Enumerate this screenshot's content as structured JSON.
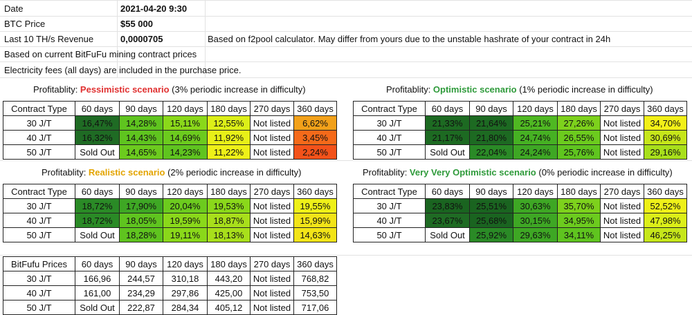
{
  "info": {
    "date_label": "Date",
    "date_value": "2021-04-20 9:30",
    "btc_label": "BTC Price",
    "btc_value": "$55 000",
    "revenue_label": "Last 10 TH/s Revenue",
    "revenue_value": "0,0000705",
    "revenue_note": "Based on f2pool calculator. May differ from yours due to the unstable hashrate of your contract in 24h",
    "line_contract_prices": "Based on current BitFuFu mining contract prices",
    "line_electricity": "Electricity fees (all days) are included in the purchase price."
  },
  "captions": {
    "prefix": "Profitablity: ",
    "pessimistic_name": "Pessimistic scenario",
    "pessimistic_rest": " (3% periodic increase in difficulty)",
    "optimistic_name": "Optimistic scenario",
    "optimistic_rest": " (1% periodic increase in difficulty)",
    "realistic_name": "Realistic scenario",
    "realistic_rest": " (2% periodic increase in difficulty)",
    "vvopt_name": "Very Very Optimistic scenario",
    "vvopt_rest": " (0% periodic increase in difficulty)"
  },
  "header_cols": [
    "60 days",
    "90 days",
    "120 days",
    "180 days",
    "270 days",
    "360 days"
  ],
  "contract_type_label": "Contract Type",
  "prices_label": "BitFufu Prices",
  "tables": {
    "pessimistic": {
      "rows": [
        {
          "label": "30 J/T",
          "cells": [
            {
              "v": "16,47%",
              "bg": "#1f6b24"
            },
            {
              "v": "14,28%",
              "bg": "#5fc41f"
            },
            {
              "v": "15,11%",
              "bg": "#8ad81a"
            },
            {
              "v": "12,55%",
              "bg": "#dcef18"
            },
            {
              "v": "Not listed",
              "bg": "#ffffff"
            },
            {
              "v": "6,62%",
              "bg": "#f2a11a"
            }
          ]
        },
        {
          "label": "40 J/T",
          "cells": [
            {
              "v": "16,32%",
              "bg": "#1f6b24"
            },
            {
              "v": "14,43%",
              "bg": "#5fc41f"
            },
            {
              "v": "14,69%",
              "bg": "#6ccb1e"
            },
            {
              "v": "11,92%",
              "bg": "#e8f018"
            },
            {
              "v": "Not listed",
              "bg": "#ffffff"
            },
            {
              "v": "3,45%",
              "bg": "#f56a1a"
            }
          ]
        },
        {
          "label": "50 J/T",
          "cells": [
            {
              "v": "Sold Out",
              "bg": "#ffffff"
            },
            {
              "v": "14,65%",
              "bg": "#6ccb1e"
            },
            {
              "v": "14,23%",
              "bg": "#5fc41f"
            },
            {
              "v": "11,22%",
              "bg": "#eef018"
            },
            {
              "v": "Not listed",
              "bg": "#ffffff"
            },
            {
              "v": "2,24%",
              "bg": "#f3521a"
            }
          ]
        }
      ]
    },
    "optimistic": {
      "rows": [
        {
          "label": "30 J/T",
          "cells": [
            {
              "v": "21,33%",
              "bg": "#1d6a22"
            },
            {
              "v": "21,64%",
              "bg": "#1d6a22"
            },
            {
              "v": "25,21%",
              "bg": "#4fb822"
            },
            {
              "v": "27,26%",
              "bg": "#7dd11c"
            },
            {
              "v": "Not listed",
              "bg": "#ffffff"
            },
            {
              "v": "34,70%",
              "bg": "#f2f018"
            }
          ]
        },
        {
          "label": "40 J/T",
          "cells": [
            {
              "v": "21,17%",
              "bg": "#1d6a22"
            },
            {
              "v": "21,80%",
              "bg": "#1d6a22"
            },
            {
              "v": "24,74%",
              "bg": "#46b123"
            },
            {
              "v": "26,55%",
              "bg": "#6ccb1e"
            },
            {
              "v": "Not listed",
              "bg": "#ffffff"
            },
            {
              "v": "30,69%",
              "bg": "#c6e61a"
            }
          ]
        },
        {
          "label": "50 J/T",
          "cells": [
            {
              "v": "Sold Out",
              "bg": "#ffffff"
            },
            {
              "v": "22,04%",
              "bg": "#2a8a26"
            },
            {
              "v": "24,24%",
              "bg": "#3ea724"
            },
            {
              "v": "25,76%",
              "bg": "#5fc41f"
            },
            {
              "v": "Not listed",
              "bg": "#ffffff"
            },
            {
              "v": "29,16%",
              "bg": "#a8df1b"
            }
          ]
        }
      ]
    },
    "realistic": {
      "rows": [
        {
          "label": "30 J/T",
          "cells": [
            {
              "v": "18,72%",
              "bg": "#2a8a26"
            },
            {
              "v": "17,90%",
              "bg": "#3ea724"
            },
            {
              "v": "20,04%",
              "bg": "#6ccb1e"
            },
            {
              "v": "19,53%",
              "bg": "#8ad81a"
            },
            {
              "v": "Not listed",
              "bg": "#ffffff"
            },
            {
              "v": "19,55%",
              "bg": "#eef018"
            }
          ]
        },
        {
          "label": "40 J/T",
          "cells": [
            {
              "v": "18,72%",
              "bg": "#2a8a26"
            },
            {
              "v": "18,05%",
              "bg": "#5fc41f"
            },
            {
              "v": "19,59%",
              "bg": "#8ad81a"
            },
            {
              "v": "18,87%",
              "bg": "#a8df1b"
            },
            {
              "v": "Not listed",
              "bg": "#ffffff"
            },
            {
              "v": "15,99%",
              "bg": "#f2e418"
            }
          ]
        },
        {
          "label": "50 J/T",
          "cells": [
            {
              "v": "Sold Out",
              "bg": "#ffffff"
            },
            {
              "v": "18,28%",
              "bg": "#5fc41f"
            },
            {
              "v": "19,11%",
              "bg": "#8ad81a"
            },
            {
              "v": "18,13%",
              "bg": "#a8df1b"
            },
            {
              "v": "Not listed",
              "bg": "#ffffff"
            },
            {
              "v": "14,63%",
              "bg": "#f2e418"
            }
          ]
        }
      ]
    },
    "vvopt": {
      "rows": [
        {
          "label": "30 J/T",
          "cells": [
            {
              "v": "23,83%",
              "bg": "#1a6420"
            },
            {
              "v": "25,51%",
              "bg": "#1a6420"
            },
            {
              "v": "30,63%",
              "bg": "#3ea724"
            },
            {
              "v": "35,70%",
              "bg": "#7dd11c"
            },
            {
              "v": "Not listed",
              "bg": "#ffffff"
            },
            {
              "v": "52,52%",
              "bg": "#eef018"
            }
          ]
        },
        {
          "label": "40 J/T",
          "cells": [
            {
              "v": "23,67%",
              "bg": "#1f6b24"
            },
            {
              "v": "25,68%",
              "bg": "#1a6420"
            },
            {
              "v": "30,15%",
              "bg": "#3ea724"
            },
            {
              "v": "34,95%",
              "bg": "#6ccb1e"
            },
            {
              "v": "Not listed",
              "bg": "#ffffff"
            },
            {
              "v": "47,98%",
              "bg": "#dcef18"
            }
          ]
        },
        {
          "label": "50 J/T",
          "cells": [
            {
              "v": "Sold Out",
              "bg": "#ffffff"
            },
            {
              "v": "25,92%",
              "bg": "#2a8a26"
            },
            {
              "v": "29,63%",
              "bg": "#3ea724"
            },
            {
              "v": "34,11%",
              "bg": "#5fc41f"
            },
            {
              "v": "Not listed",
              "bg": "#ffffff"
            },
            {
              "v": "46,25%",
              "bg": "#c6e61a"
            }
          ]
        }
      ]
    },
    "prices": {
      "rows": [
        {
          "label": "30 J/T",
          "cells": [
            {
              "v": "166,96"
            },
            {
              "v": "244,57"
            },
            {
              "v": "310,18"
            },
            {
              "v": "443,20"
            },
            {
              "v": "Not listed"
            },
            {
              "v": "768,82"
            }
          ]
        },
        {
          "label": "40 J/T",
          "cells": [
            {
              "v": "161,00"
            },
            {
              "v": "234,29"
            },
            {
              "v": "297,86"
            },
            {
              "v": "425,00"
            },
            {
              "v": "Not listed"
            },
            {
              "v": "753,50"
            }
          ]
        },
        {
          "label": "50 J/T",
          "cells": [
            {
              "v": "Sold Out"
            },
            {
              "v": "222,87"
            },
            {
              "v": "284,34"
            },
            {
              "v": "405,12"
            },
            {
              "v": "Not listed"
            },
            {
              "v": "717,06"
            }
          ]
        }
      ]
    }
  }
}
